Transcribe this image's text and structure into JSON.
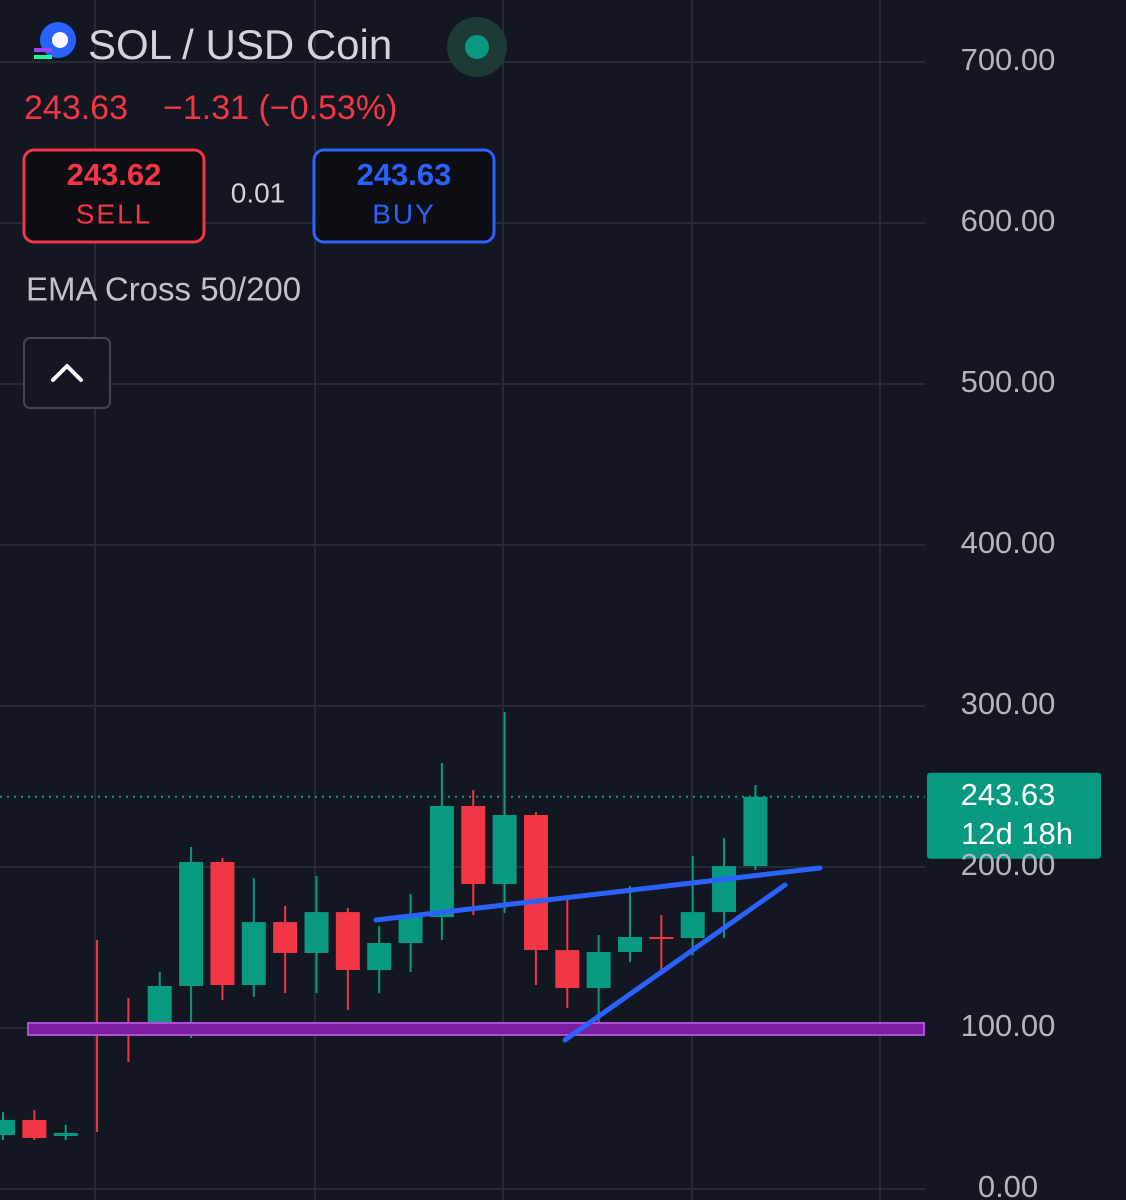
{
  "header": {
    "title": "SOL / USD Coin",
    "price": "243.63",
    "change": "−1.31 (−0.53%)",
    "sell_price": "243.62",
    "sell_label": "SELL",
    "spread": "0.01",
    "buy_price": "243.63",
    "buy_label": "BUY",
    "indicator": "EMA Cross 50/200"
  },
  "chart_data": {
    "type": "candlestick",
    "up_color": "#089981",
    "down_color": "#f23645",
    "open": [
      33.5,
      42.9,
      32.9,
      103.7,
      101.9,
      97.5,
      126.1,
      203.1,
      126.7,
      165.8,
      146.6,
      172.0,
      136.0,
      152.8,
      168.9,
      237.9,
      189.4,
      232.3,
      148.4,
      124.8,
      147.2,
      156.5,
      155.9,
      172.0,
      200.6
    ],
    "high": [
      47.8,
      49.0,
      39.8,
      154.7,
      118.6,
      134.8,
      212.4,
      205.6,
      193.2,
      175.8,
      194.4,
      174.5,
      163.4,
      183.2,
      264.6,
      247.8,
      296.3,
      234.2,
      179.5,
      157.8,
      188.2,
      170.2,
      206.8,
      218.0,
      250.9
    ],
    "low": [
      30.4,
      30.4,
      30.4,
      35.4,
      78.9,
      95.7,
      93.8,
      117.4,
      119.3,
      121.7,
      121.7,
      111.2,
      121.7,
      134.8,
      154.7,
      170.2,
      171.4,
      126.7,
      112.4,
      95.7,
      141.0,
      132.9,
      145.3,
      155.9,
      198.1
    ],
    "close": [
      42.9,
      31.7,
      34.8,
      101.9,
      97.5,
      126.1,
      203.1,
      126.7,
      165.8,
      146.6,
      172.0,
      136.0,
      152.8,
      168.9,
      237.9,
      189.4,
      232.3,
      148.4,
      124.8,
      147.2,
      156.5,
      155.9,
      172.0,
      200.6,
      243.63
    ],
    "ylim": [
      0,
      700
    ],
    "yticks": [
      {
        "value": 0,
        "label": "0.00"
      },
      {
        "value": 100,
        "label": "100.00"
      },
      {
        "value": 200,
        "label": "200.00"
      },
      {
        "value": 300,
        "label": "300.00"
      },
      {
        "value": 400,
        "label": "400.00"
      },
      {
        "value": 500,
        "label": "500.00"
      },
      {
        "value": 600,
        "label": "600.00"
      },
      {
        "value": 700,
        "label": "700.00"
      }
    ],
    "grid": true,
    "last_price": 243.63,
    "countdown": "12d 18h"
  }
}
